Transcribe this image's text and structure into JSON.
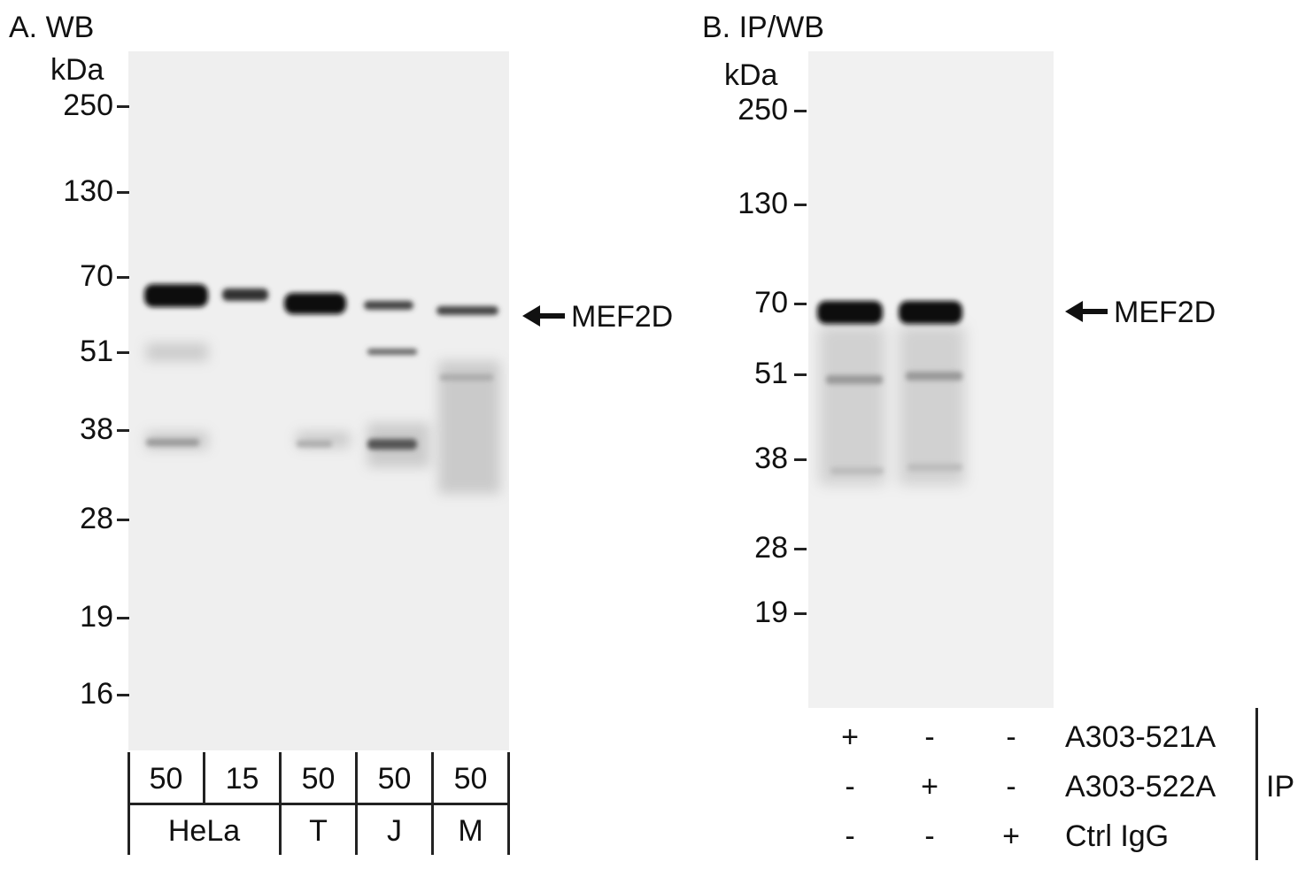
{
  "panel_a": {
    "title": "A. WB",
    "unit": "kDa",
    "markers": [
      "250",
      "130",
      "70",
      "51",
      "38",
      "28",
      "19",
      "16"
    ],
    "target": "MEF2D",
    "amounts": [
      "50",
      "15",
      "50",
      "50",
      "50"
    ],
    "cell_lines": [
      "HeLa",
      "T",
      "J",
      "M"
    ]
  },
  "panel_b": {
    "title": "B. IP/WB",
    "unit": "kDa",
    "markers": [
      "250",
      "130",
      "70",
      "51",
      "38",
      "28",
      "19"
    ],
    "target": "MEF2D",
    "rows": [
      {
        "label": "A303-521A",
        "signs": [
          "+",
          "-",
          "-"
        ]
      },
      {
        "label": "A303-522A",
        "signs": [
          "-",
          "+",
          "-"
        ]
      },
      {
        "label": "Ctrl IgG",
        "signs": [
          "-",
          "-",
          "+"
        ]
      }
    ],
    "group_label": "IP"
  }
}
